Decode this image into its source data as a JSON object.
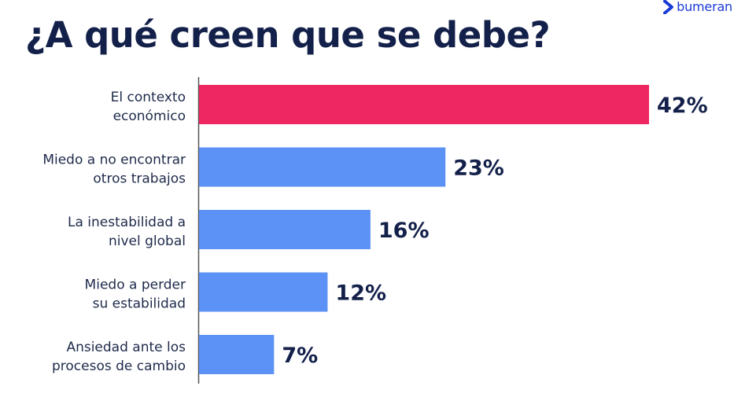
{
  "brand": {
    "name": "bumeran",
    "color": "#1a3bd6",
    "logo_icon": "chevron-right-icon"
  },
  "colors": {
    "highlight": "#ee2661",
    "bar": "#5c91f5",
    "text": "#13204a",
    "axis": "#555555"
  },
  "chart_data": {
    "type": "bar",
    "orientation": "horizontal",
    "title": "¿A qué creen que se debe?",
    "categories": [
      [
        "El contexto",
        "económico"
      ],
      [
        "Miedo a no encontrar",
        "otros trabajos"
      ],
      [
        "La inestabilidad a",
        "nivel global"
      ],
      [
        "Miedo a perder",
        "su estabilidad"
      ],
      [
        "Ansiedad ante los",
        "procesos de cambio"
      ]
    ],
    "values": [
      42,
      23,
      16,
      12,
      7
    ],
    "value_labels": [
      "42%",
      "23%",
      "16%",
      "12%",
      "7%"
    ],
    "highlight_index": 0,
    "xlim": [
      0,
      42
    ],
    "grid": false,
    "legend": "none"
  }
}
